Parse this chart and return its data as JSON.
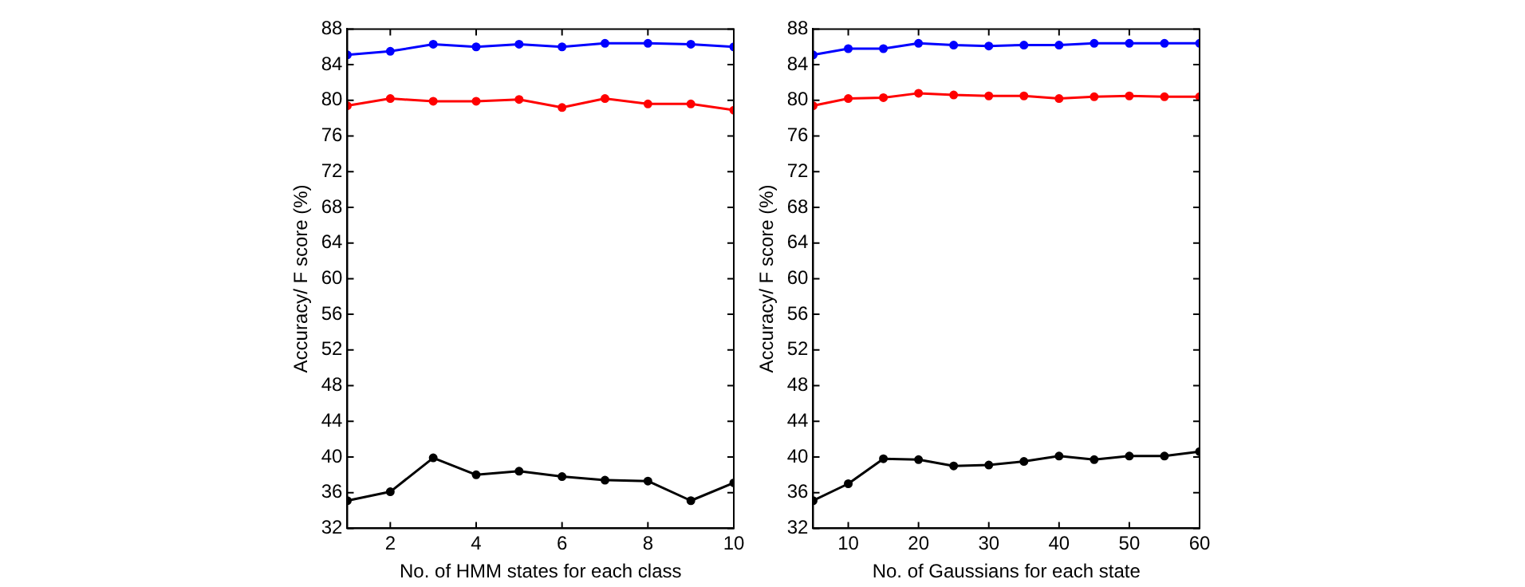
{
  "chart_data": [
    {
      "type": "line",
      "xlabel": "No. of HMM states for each class",
      "ylabel": "Accuracy/ F score (%)",
      "x": [
        1,
        2,
        3,
        4,
        5,
        6,
        7,
        8,
        9,
        10
      ],
      "xlim": [
        1,
        10
      ],
      "xticks": [
        2,
        4,
        6,
        8,
        10
      ],
      "ylim": [
        32,
        88
      ],
      "yticks": [
        32,
        36,
        40,
        44,
        48,
        52,
        56,
        60,
        64,
        68,
        72,
        76,
        80,
        84,
        88
      ],
      "grid": false,
      "legend": false,
      "marker": "circle",
      "line_style": "solid",
      "series": [
        {
          "color": "#0000ff",
          "values": [
            85.1,
            85.5,
            86.3,
            86.0,
            86.3,
            86.0,
            86.4,
            86.4,
            86.3,
            86.0
          ]
        },
        {
          "color": "#ff0000",
          "values": [
            79.4,
            80.2,
            79.9,
            79.9,
            80.1,
            79.2,
            80.2,
            79.6,
            79.6,
            78.9
          ]
        },
        {
          "color": "#000000",
          "values": [
            35.1,
            36.1,
            39.9,
            38.0,
            38.4,
            37.8,
            37.4,
            37.3,
            35.1,
            37.1
          ]
        }
      ]
    },
    {
      "type": "line",
      "xlabel": "No. of Gaussians for each state",
      "ylabel": "Accuracy/ F score (%)",
      "x": [
        5,
        10,
        15,
        20,
        25,
        30,
        35,
        40,
        45,
        50,
        55,
        60
      ],
      "xlim": [
        5,
        60
      ],
      "xticks": [
        10,
        20,
        30,
        40,
        50,
        60
      ],
      "ylim": [
        32,
        88
      ],
      "yticks": [
        32,
        36,
        40,
        44,
        48,
        52,
        56,
        60,
        64,
        68,
        72,
        76,
        80,
        84,
        88
      ],
      "grid": false,
      "legend": false,
      "marker": "circle",
      "line_style": "solid",
      "series": [
        {
          "color": "#0000ff",
          "values": [
            85.1,
            85.8,
            85.8,
            86.4,
            86.2,
            86.1,
            86.2,
            86.2,
            86.4,
            86.4,
            86.4,
            86.4
          ]
        },
        {
          "color": "#ff0000",
          "values": [
            79.4,
            80.2,
            80.3,
            80.8,
            80.6,
            80.5,
            80.5,
            80.2,
            80.4,
            80.5,
            80.4,
            80.4
          ]
        },
        {
          "color": "#000000",
          "values": [
            35.1,
            37.0,
            39.8,
            39.7,
            39.0,
            39.1,
            39.5,
            40.1,
            39.7,
            40.1,
            40.1,
            40.6
          ]
        }
      ]
    }
  ]
}
